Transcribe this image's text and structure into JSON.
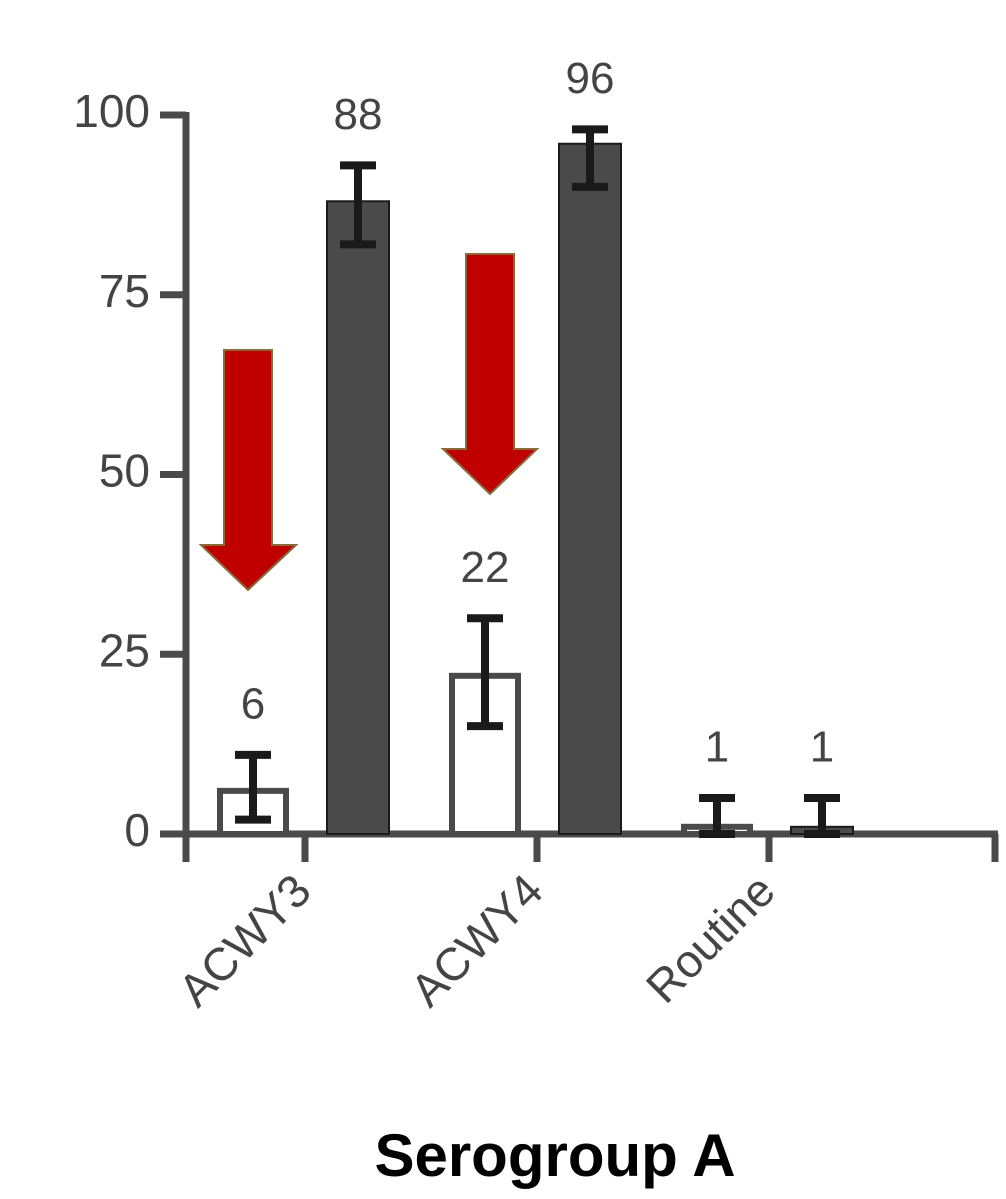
{
  "chart_data": {
    "type": "bar",
    "title": "Serogroup A",
    "categories": [
      "ACWY3",
      "ACWY4",
      "Routine"
    ],
    "series": [
      {
        "color": "#ffffff",
        "values": [
          6,
          22,
          1
        ],
        "lower": [
          2,
          15,
          0
        ],
        "upper": [
          11,
          30,
          5
        ]
      },
      {
        "color": "#4a4a4a",
        "values": [
          88,
          96,
          1
        ],
        "lower": [
          82,
          90,
          0
        ],
        "upper": [
          93,
          98,
          5
        ]
      }
    ],
    "ylim": [
      0,
      100
    ],
    "yticks": [
      0,
      25,
      50,
      75,
      100
    ]
  }
}
